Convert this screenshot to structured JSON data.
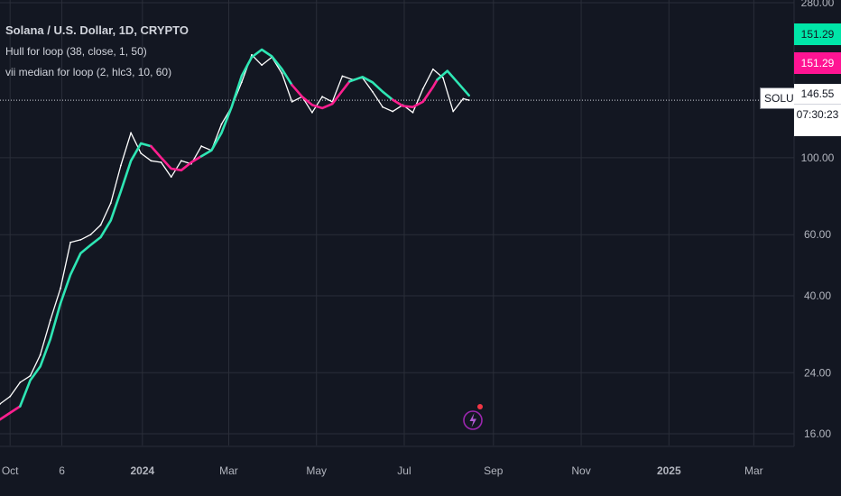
{
  "chart_data": {
    "type": "line",
    "title": "Solana / U.S. Dollar, 1D, CRYPTO",
    "symbol": "SOLUSD",
    "indicators": [
      "Hull for loop (38, close, 1, 50)",
      "vii median for loop (2, hlc3, 10, 60)"
    ],
    "y_scale": "log",
    "ylim": [
      14.8,
      285
    ],
    "y_ticks": [
      16,
      24,
      40,
      60,
      100,
      280
    ],
    "y_tick_labels": [
      "16.00",
      "24.00",
      "40.00",
      "60.00",
      "100.00",
      "280.00"
    ],
    "x_ticks": [
      "2023-10-01",
      "2023-11-06",
      "2024-01-01",
      "2024-03-01",
      "2024-05-01",
      "2024-07-01",
      "2024-09-01",
      "2024-11-01",
      "2025-01-01",
      "2025-03-01"
    ],
    "x_tick_labels": [
      "Oct",
      "6",
      "2024",
      "Mar",
      "May",
      "Jul",
      "Sep",
      "Nov",
      "2025",
      "Mar"
    ],
    "xlim": [
      "2023-09-24",
      "2025-03-29"
    ],
    "grid": true,
    "last_price": 146.55,
    "countdown": "07:30:23",
    "hull_value": 151.29,
    "median_value": 151.29,
    "colors": {
      "price": "#ffffff",
      "hull_up": "#2ee6b4",
      "hull_down": "#ff1f8f",
      "hull_up_badge": "#00e6a8",
      "hull_down_badge": "#ff1493",
      "grid": "#2a2e39",
      "axis_text": "#b2b5be"
    },
    "series": [
      {
        "name": "SOLUSD",
        "points": [
          [
            "2023-09-24",
            19.5
          ],
          [
            "2023-10-01",
            20.5
          ],
          [
            "2023-10-08",
            22.5
          ],
          [
            "2023-10-15",
            23.5
          ],
          [
            "2023-10-22",
            27
          ],
          [
            "2023-10-29",
            34
          ],
          [
            "2023-11-05",
            42
          ],
          [
            "2023-11-12",
            57
          ],
          [
            "2023-11-19",
            58
          ],
          [
            "2023-11-26",
            60
          ],
          [
            "2023-12-03",
            64
          ],
          [
            "2023-12-10",
            74
          ],
          [
            "2023-12-17",
            95
          ],
          [
            "2023-12-24",
            118
          ],
          [
            "2023-12-31",
            103
          ],
          [
            "2024-01-07",
            98
          ],
          [
            "2024-01-14",
            97
          ],
          [
            "2024-01-21",
            88
          ],
          [
            "2024-01-28",
            98
          ],
          [
            "2024-02-04",
            96
          ],
          [
            "2024-02-11",
            108
          ],
          [
            "2024-02-18",
            105
          ],
          [
            "2024-02-25",
            125
          ],
          [
            "2024-03-03",
            140
          ],
          [
            "2024-03-10",
            165
          ],
          [
            "2024-03-17",
            198
          ],
          [
            "2024-03-24",
            185
          ],
          [
            "2024-03-31",
            195
          ],
          [
            "2024-04-07",
            175
          ],
          [
            "2024-04-14",
            145
          ],
          [
            "2024-04-21",
            150
          ],
          [
            "2024-04-28",
            135
          ],
          [
            "2024-05-05",
            150
          ],
          [
            "2024-05-12",
            145
          ],
          [
            "2024-05-19",
            172
          ],
          [
            "2024-05-26",
            168
          ],
          [
            "2024-06-02",
            170
          ],
          [
            "2024-06-09",
            155
          ],
          [
            "2024-06-16",
            140
          ],
          [
            "2024-06-23",
            136
          ],
          [
            "2024-06-30",
            142
          ],
          [
            "2024-07-07",
            135
          ],
          [
            "2024-07-14",
            158
          ],
          [
            "2024-07-21",
            180
          ],
          [
            "2024-07-28",
            170
          ],
          [
            "2024-08-04",
            136
          ],
          [
            "2024-08-11",
            148
          ],
          [
            "2024-08-15",
            146.55
          ]
        ]
      },
      {
        "name": "Hull for loop",
        "segments": [
          {
            "trend": "down",
            "points": [
              [
                "2023-09-24",
                17.6
              ],
              [
                "2023-10-08",
                19.2
              ]
            ]
          },
          {
            "trend": "up",
            "points": [
              [
                "2023-10-08",
                19.2
              ],
              [
                "2023-10-15",
                22.8
              ],
              [
                "2023-10-22",
                25
              ],
              [
                "2023-10-29",
                30
              ],
              [
                "2023-11-05",
                38
              ],
              [
                "2023-11-12",
                46
              ],
              [
                "2023-11-19",
                53
              ],
              [
                "2023-11-26",
                56
              ],
              [
                "2023-12-03",
                59
              ],
              [
                "2023-12-10",
                66
              ],
              [
                "2023-12-17",
                80
              ],
              [
                "2023-12-24",
                98
              ],
              [
                "2023-12-31",
                110
              ],
              [
                "2024-01-07",
                108
              ]
            ]
          },
          {
            "trend": "down",
            "points": [
              [
                "2024-01-07",
                108
              ],
              [
                "2024-01-14",
                100
              ],
              [
                "2024-01-21",
                93
              ],
              [
                "2024-01-28",
                92
              ],
              [
                "2024-02-04",
                97
              ],
              [
                "2024-02-11",
                101
              ]
            ]
          },
          {
            "trend": "up",
            "points": [
              [
                "2024-02-11",
                101
              ],
              [
                "2024-02-18",
                105
              ],
              [
                "2024-02-25",
                118
              ],
              [
                "2024-03-03",
                140
              ],
              [
                "2024-03-10",
                172
              ],
              [
                "2024-03-17",
                195
              ],
              [
                "2024-03-24",
                205
              ],
              [
                "2024-03-31",
                196
              ],
              [
                "2024-04-07",
                180
              ],
              [
                "2024-04-14",
                162
              ]
            ]
          },
          {
            "trend": "down",
            "points": [
              [
                "2024-04-14",
                162
              ],
              [
                "2024-04-21",
                150
              ],
              [
                "2024-04-28",
                142
              ],
              [
                "2024-05-05",
                139
              ],
              [
                "2024-05-12",
                143
              ],
              [
                "2024-05-19",
                156
              ],
              [
                "2024-05-24",
                166
              ]
            ]
          },
          {
            "trend": "up",
            "points": [
              [
                "2024-05-24",
                166
              ],
              [
                "2024-06-02",
                171
              ],
              [
                "2024-06-09",
                165
              ],
              [
                "2024-06-16",
                155
              ],
              [
                "2024-06-23",
                147
              ]
            ]
          },
          {
            "trend": "down",
            "points": [
              [
                "2024-06-23",
                147
              ],
              [
                "2024-06-30",
                141
              ],
              [
                "2024-07-07",
                140
              ],
              [
                "2024-07-14",
                145
              ],
              [
                "2024-07-21",
                160
              ],
              [
                "2024-07-24",
                168
              ]
            ]
          },
          {
            "trend": "up",
            "points": [
              [
                "2024-07-24",
                168
              ],
              [
                "2024-07-31",
                178
              ],
              [
                "2024-08-07",
                165
              ],
              [
                "2024-08-15",
                151.29
              ]
            ]
          }
        ]
      }
    ]
  }
}
